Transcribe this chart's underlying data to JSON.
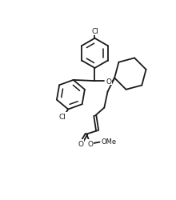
{
  "bg_color": "#ffffff",
  "line_color": "#1a1a1a",
  "lw": 1.3,
  "fs": 6.5,
  "figsize": [
    2.2,
    2.51
  ],
  "dpi": 100,
  "xlim": [
    -0.05,
    2.25
  ],
  "ylim": [
    -0.1,
    2.6
  ]
}
